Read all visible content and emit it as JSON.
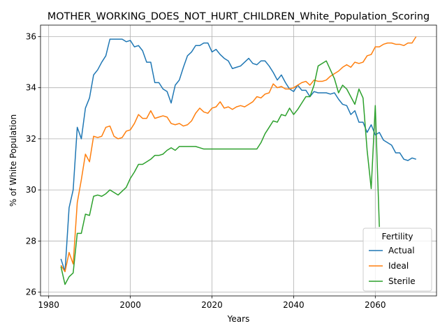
{
  "chart_data": {
    "type": "line",
    "title": "MOTHER_WORKING_DOES_NOT_HURT_CHILDREN_White_Population_Scoring",
    "xlabel": "Years",
    "ylabel": "% of White Population",
    "xlim": [
      1978,
      2075
    ],
    "ylim": [
      25.85,
      36.45
    ],
    "xticks": [
      1980,
      2000,
      2020,
      2040,
      2060
    ],
    "yticks": [
      26,
      28,
      30,
      32,
      34,
      36
    ],
    "grid": true,
    "legend": {
      "title": "Fertility",
      "placement": "lower-right"
    },
    "series": [
      {
        "name": "Actual",
        "color": "#1f77b4",
        "x": [
          1983,
          1984,
          1985,
          1986,
          1987,
          1988,
          1989,
          1990,
          1991,
          1992,
          1993,
          1994,
          1995,
          1996,
          1997,
          1998,
          1999,
          2000,
          2001,
          2002,
          2003,
          2004,
          2005,
          2006,
          2007,
          2008,
          2009,
          2010,
          2011,
          2012,
          2013,
          2014,
          2015,
          2016,
          2017,
          2018,
          2019,
          2020,
          2021,
          2022,
          2023,
          2024,
          2025,
          2026,
          2027,
          2028,
          2029,
          2030,
          2031,
          2032,
          2033,
          2034,
          2035,
          2036,
          2037,
          2038,
          2039,
          2040,
          2041,
          2042,
          2043,
          2044,
          2045,
          2046,
          2047,
          2048,
          2049,
          2050,
          2051,
          2052,
          2053,
          2054,
          2055,
          2056,
          2057,
          2058,
          2059,
          2060,
          2061,
          2062,
          2063,
          2064,
          2065,
          2066,
          2067,
          2068,
          2069,
          2070
        ],
        "y": [
          27.3,
          26.8,
          29.3,
          30.0,
          32.45,
          32.0,
          33.2,
          33.6,
          34.5,
          34.7,
          35.0,
          35.25,
          35.9,
          35.9,
          35.9,
          35.9,
          35.8,
          35.85,
          35.6,
          35.65,
          35.45,
          35.0,
          35.0,
          34.2,
          34.2,
          33.95,
          33.85,
          33.4,
          34.1,
          34.3,
          34.8,
          35.25,
          35.4,
          35.65,
          35.65,
          35.75,
          35.75,
          35.4,
          35.5,
          35.3,
          35.15,
          35.05,
          34.75,
          34.8,
          34.85,
          35.0,
          35.15,
          34.95,
          34.9,
          35.05,
          35.05,
          34.85,
          34.6,
          34.3,
          34.5,
          34.2,
          33.95,
          33.85,
          34.1,
          33.9,
          33.9,
          33.65,
          33.85,
          33.8,
          33.8,
          33.8,
          33.75,
          33.8,
          33.55,
          33.35,
          33.3,
          32.95,
          33.1,
          32.65,
          32.65,
          32.25,
          32.55,
          32.15,
          32.25,
          31.95,
          31.85,
          31.75,
          31.45,
          31.45,
          31.2,
          31.15,
          31.25,
          31.2
        ]
      },
      {
        "name": "Ideal",
        "color": "#ff7f0e",
        "x": [
          1983,
          1984,
          1985,
          1986,
          1987,
          1988,
          1989,
          1990,
          1991,
          1992,
          1993,
          1994,
          1995,
          1996,
          1997,
          1998,
          1999,
          2000,
          2001,
          2002,
          2003,
          2004,
          2005,
          2006,
          2007,
          2008,
          2009,
          2010,
          2011,
          2012,
          2013,
          2014,
          2015,
          2016,
          2017,
          2018,
          2019,
          2020,
          2021,
          2022,
          2023,
          2024,
          2025,
          2026,
          2027,
          2028,
          2029,
          2030,
          2031,
          2032,
          2033,
          2034,
          2035,
          2036,
          2037,
          2038,
          2039,
          2040,
          2041,
          2042,
          2043,
          2044,
          2045,
          2046,
          2047,
          2048,
          2049,
          2050,
          2051,
          2052,
          2053,
          2054,
          2055,
          2056,
          2057,
          2058,
          2059,
          2060,
          2061,
          2062,
          2063,
          2064,
          2065,
          2066,
          2067,
          2068,
          2069,
          2070
        ],
        "y": [
          27.05,
          26.8,
          27.55,
          27.1,
          29.5,
          30.4,
          31.4,
          31.1,
          32.1,
          32.05,
          32.1,
          32.45,
          32.5,
          32.1,
          32.0,
          32.05,
          32.3,
          32.35,
          32.6,
          32.95,
          32.8,
          32.8,
          33.1,
          32.8,
          32.85,
          32.9,
          32.85,
          32.6,
          32.55,
          32.6,
          32.5,
          32.55,
          32.7,
          33.0,
          33.2,
          33.05,
          33.0,
          33.2,
          33.25,
          33.45,
          33.2,
          33.25,
          33.15,
          33.25,
          33.3,
          33.25,
          33.35,
          33.45,
          33.65,
          33.6,
          33.75,
          33.8,
          34.15,
          34.0,
          34.05,
          33.95,
          33.95,
          34.0,
          34.1,
          34.2,
          34.25,
          34.1,
          34.3,
          34.25,
          34.25,
          34.3,
          34.45,
          34.55,
          34.65,
          34.8,
          34.9,
          34.8,
          35.0,
          34.95,
          35.0,
          35.25,
          35.3,
          35.6,
          35.6,
          35.7,
          35.75,
          35.75,
          35.7,
          35.7,
          35.65,
          35.75,
          35.75,
          36.0
        ]
      },
      {
        "name": "Sterile",
        "color": "#2ca02c",
        "x": [
          1983,
          1984,
          1985,
          1986,
          1987,
          1988,
          1989,
          1990,
          1991,
          1992,
          1993,
          1994,
          1995,
          1996,
          1997,
          1998,
          1999,
          2000,
          2001,
          2002,
          2003,
          2004,
          2005,
          2006,
          2007,
          2008,
          2009,
          2010,
          2011,
          2012,
          2013,
          2014,
          2015,
          2016,
          2017,
          2018,
          2019,
          2020,
          2021,
          2022,
          2023,
          2024,
          2025,
          2026,
          2027,
          2028,
          2029,
          2030,
          2031,
          2032,
          2033,
          2034,
          2035,
          2036,
          2037,
          2038,
          2039,
          2040,
          2041,
          2042,
          2043,
          2044,
          2045,
          2046,
          2047,
          2048,
          2049,
          2050,
          2051,
          2052,
          2053,
          2054,
          2055,
          2056,
          2057,
          2058,
          2059,
          2060,
          2061
        ],
        "y": [
          27.0,
          26.3,
          26.6,
          26.75,
          28.3,
          28.3,
          29.05,
          29.0,
          29.75,
          29.8,
          29.75,
          29.85,
          30.0,
          29.9,
          29.8,
          29.95,
          30.1,
          30.45,
          30.7,
          31.0,
          31.0,
          31.1,
          31.2,
          31.35,
          31.35,
          31.4,
          31.55,
          31.65,
          31.55,
          31.7,
          31.7,
          31.7,
          31.7,
          31.7,
          31.65,
          31.6,
          31.6,
          31.6,
          31.6,
          31.6,
          31.6,
          31.6,
          31.6,
          31.6,
          31.6,
          31.6,
          31.6,
          31.6,
          31.6,
          31.85,
          32.2,
          32.45,
          32.7,
          32.65,
          32.95,
          32.9,
          33.2,
          32.95,
          33.15,
          33.4,
          33.65,
          33.65,
          34.1,
          34.85,
          34.95,
          35.05,
          34.7,
          34.35,
          33.8,
          34.1,
          33.95,
          33.65,
          33.35,
          33.95,
          33.6,
          31.55,
          30.05,
          33.3,
          28.55
        ]
      }
    ]
  }
}
